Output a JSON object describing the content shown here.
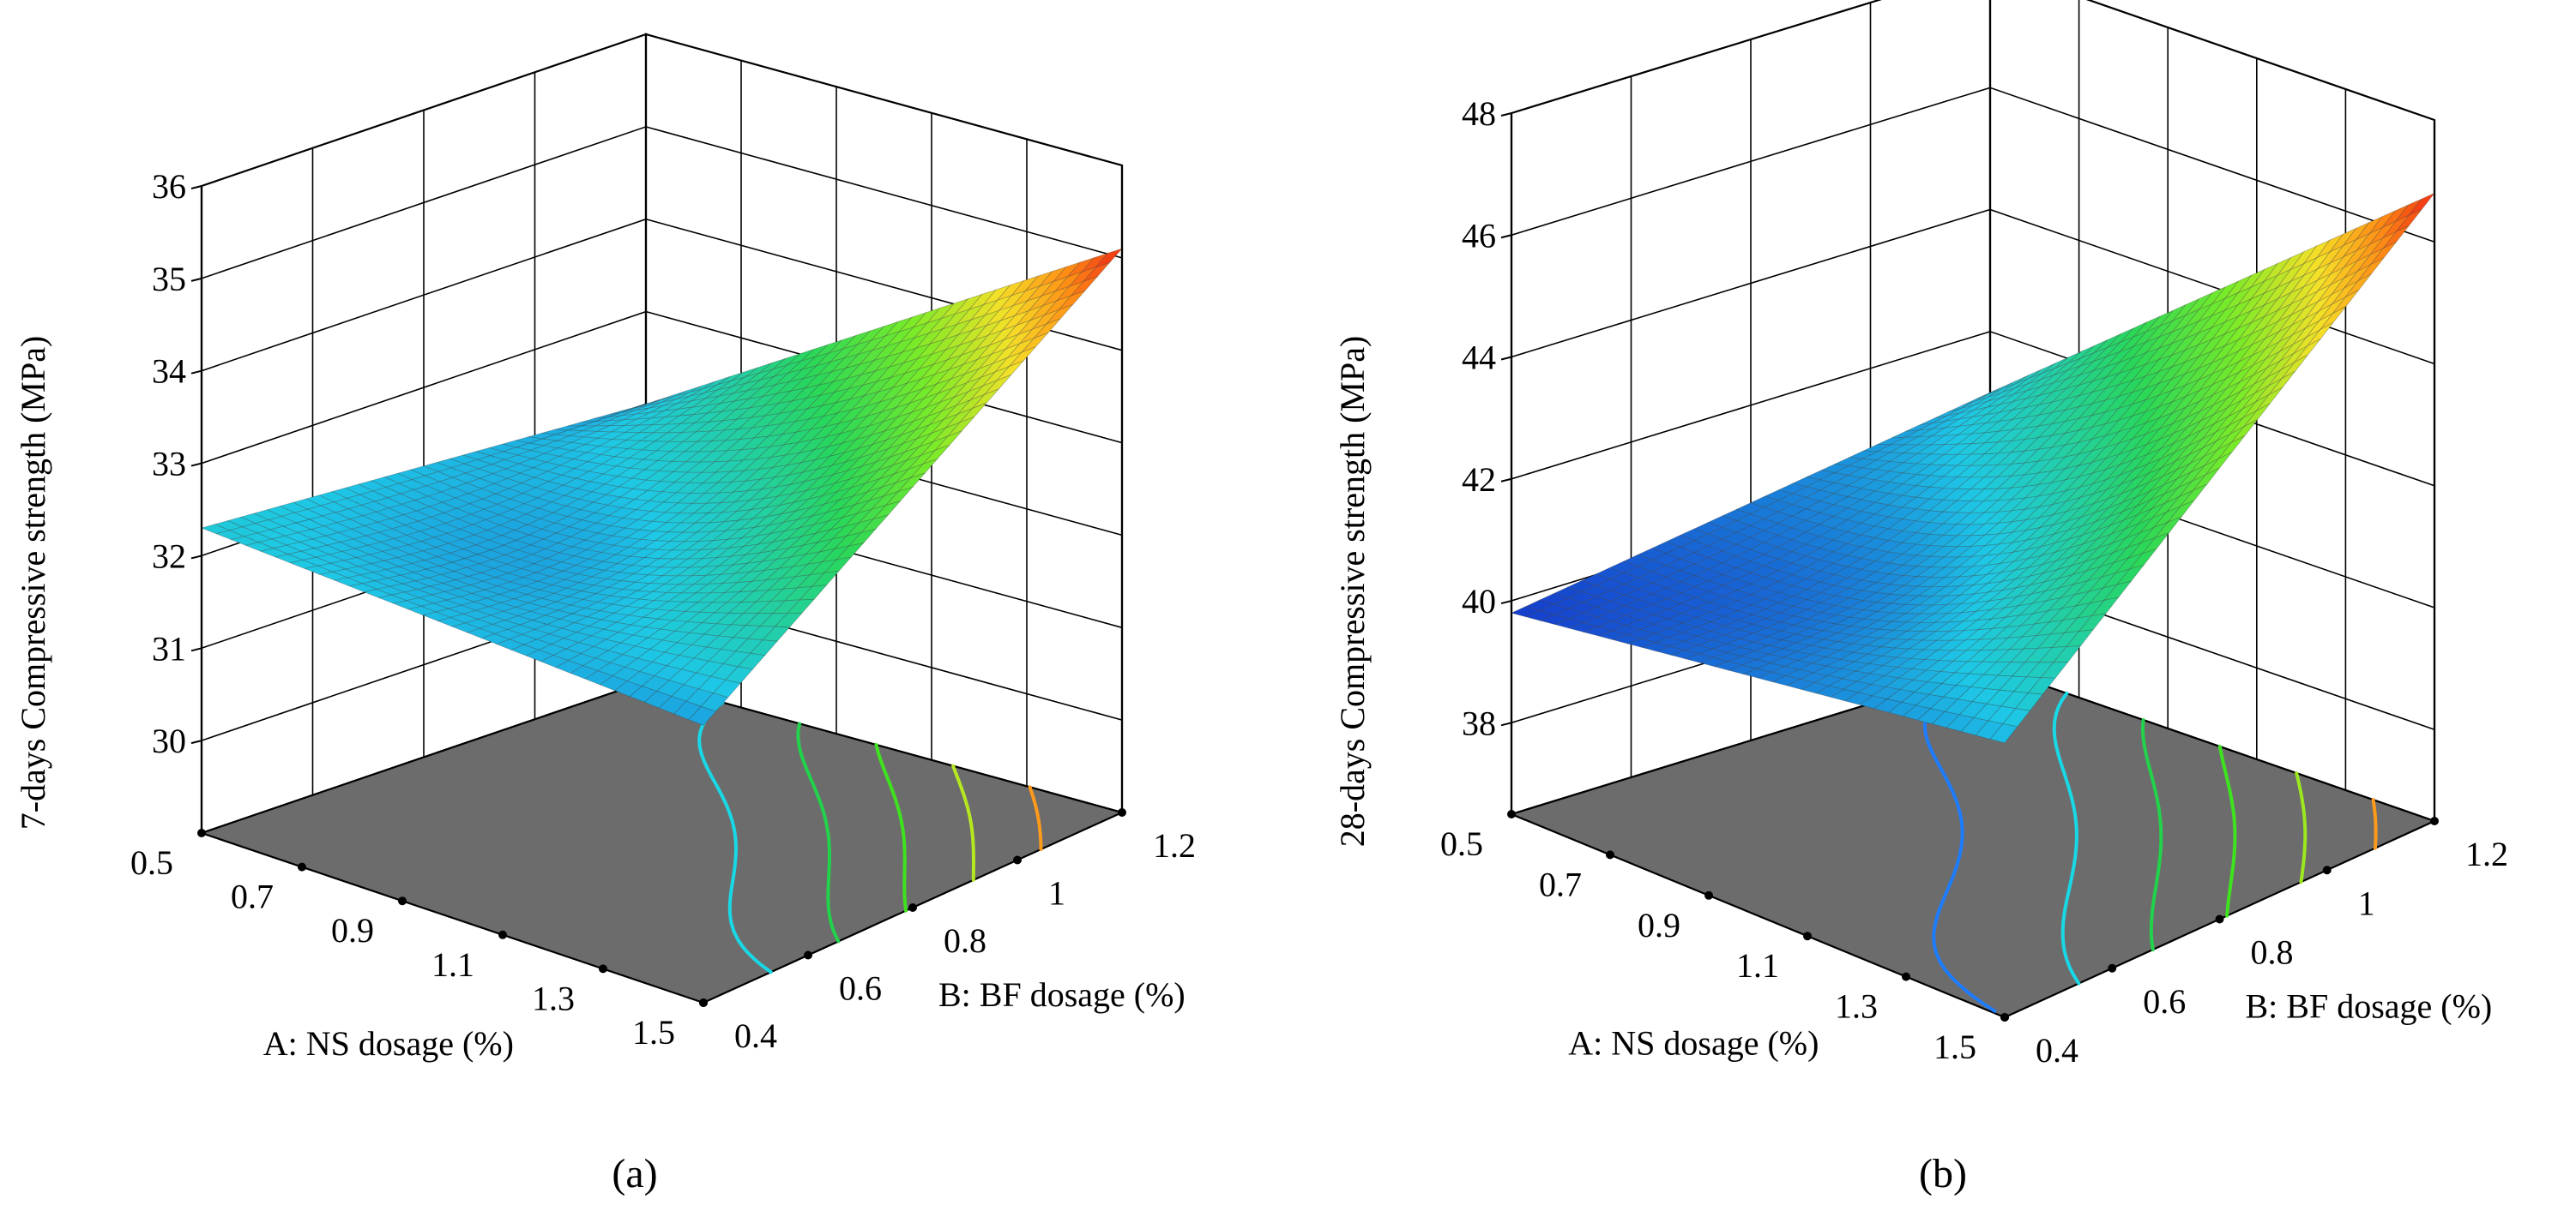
{
  "figure": {
    "captions": [
      "(a)",
      "(b)"
    ]
  },
  "chart_data": [
    {
      "type": "surface",
      "panel_label": "(a)",
      "zlabel": "7-days Compressive strength (MPa)",
      "xlabel": "A: NS dosage (%)",
      "ylabel": "B: BF dosage (%)",
      "x_ticks": [
        "0.5",
        "0.7",
        "0.9",
        "1.1",
        "1.3",
        "1.5"
      ],
      "y_ticks": [
        "0.4",
        "0.6",
        "0.8",
        "1",
        "1.2"
      ],
      "z_ticks": [
        "30",
        "31",
        "32",
        "33",
        "34",
        "35",
        "36"
      ],
      "xlim": [
        0.5,
        1.5
      ],
      "ylim": [
        0.4,
        1.2
      ],
      "zlim": [
        29,
        36
      ],
      "corner_values": {
        "A0.5_B0.4": 32.3,
        "A1.5_B0.4": 32.0,
        "A0.5_B1.2": 32.0,
        "A1.5_B1.2": 35.1
      },
      "min_value": 31.4,
      "contour_levels": [
        32,
        32.5,
        33,
        33.5,
        34,
        34.5
      ],
      "contour_colors": [
        "#1e5cff",
        "#19d8e6",
        "#22d24a",
        "#3fe21f",
        "#b6e81f",
        "#ff9a1a"
      ]
    },
    {
      "type": "surface",
      "panel_label": "(b)",
      "zlabel": "28-days Compressive strength (MPa)",
      "xlabel": "A: NS dosage (%)",
      "ylabel": "B: BF dosage (%)",
      "x_ticks": [
        "0.5",
        "0.7",
        "0.9",
        "1.1",
        "1.3",
        "1.5"
      ],
      "y_ticks": [
        "0.4",
        "0.6",
        "0.8",
        "1",
        "1.2"
      ],
      "z_ticks": [
        "38",
        "40",
        "42",
        "44",
        "46",
        "48"
      ],
      "xlim": [
        0.5,
        1.5
      ],
      "ylim": [
        0.4,
        1.2
      ],
      "zlim": [
        36.5,
        48
      ],
      "corner_values": {
        "A0.5_B0.4": 39.8,
        "A1.5_B0.4": 41.0,
        "A0.5_B1.2": 41.0,
        "A1.5_B1.2": 46.8
      },
      "min_value": 39.6,
      "contour_levels": [
        41,
        42,
        43,
        44,
        45,
        46
      ],
      "contour_colors": [
        "#1e7cff",
        "#19d8e6",
        "#22d24a",
        "#3fe21f",
        "#9be81f",
        "#ff9a1a"
      ]
    }
  ]
}
